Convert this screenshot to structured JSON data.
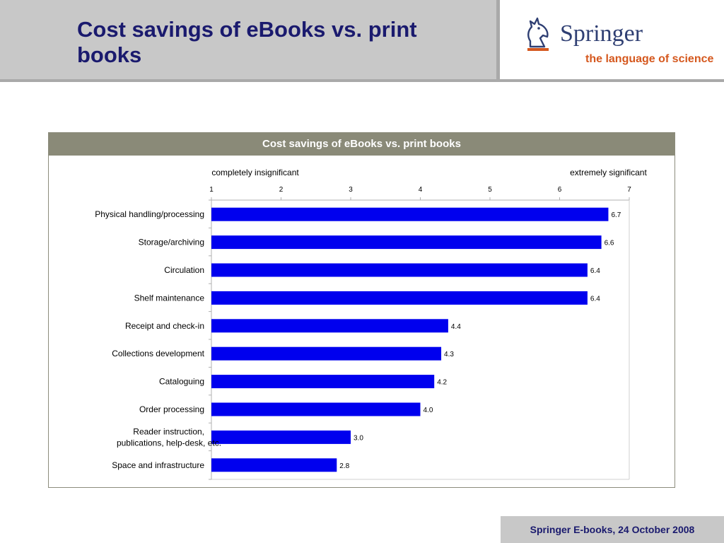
{
  "slide": {
    "title": "Cost savings of eBooks vs. print books",
    "footer": "Springer E-books, 24 October 2008"
  },
  "logo": {
    "name": "Springer",
    "tagline": "the language of science",
    "icon": "knight-chess-piece-icon",
    "colors": {
      "name": "#2f3f73",
      "tagline": "#d5581e"
    }
  },
  "colors": {
    "title": "#1a1a6e",
    "bar": "#0000ee",
    "chart_header": "#8a8a78",
    "header_band": "#c8c8c8"
  },
  "chart_data": {
    "type": "bar",
    "orientation": "horizontal",
    "title": "Cost savings of eBooks vs. print books",
    "scale_labels": {
      "low": "completely insignificant",
      "high": "extremely significant"
    },
    "xlim": [
      1,
      7
    ],
    "xticks": [
      "1",
      "2",
      "3",
      "4",
      "5",
      "6",
      "7"
    ],
    "grid": false,
    "categories": [
      "Physical handling/processing",
      "Storage/archiving",
      "Circulation",
      "Shelf maintenance",
      "Receipt and check-in",
      "Collections development",
      "Cataloguing",
      "Order processing",
      "Reader instruction, publications, help-desk, etc.",
      "Space and infrastructure"
    ],
    "values": [
      6.7,
      6.6,
      6.4,
      6.4,
      4.4,
      4.3,
      4.2,
      4.0,
      3.0,
      2.8
    ],
    "value_labels": [
      "6.7",
      "6.6",
      "6.4",
      "6.4",
      "4.4",
      "4.3",
      "4.2",
      "4.0",
      "3.0",
      "2.8"
    ]
  }
}
